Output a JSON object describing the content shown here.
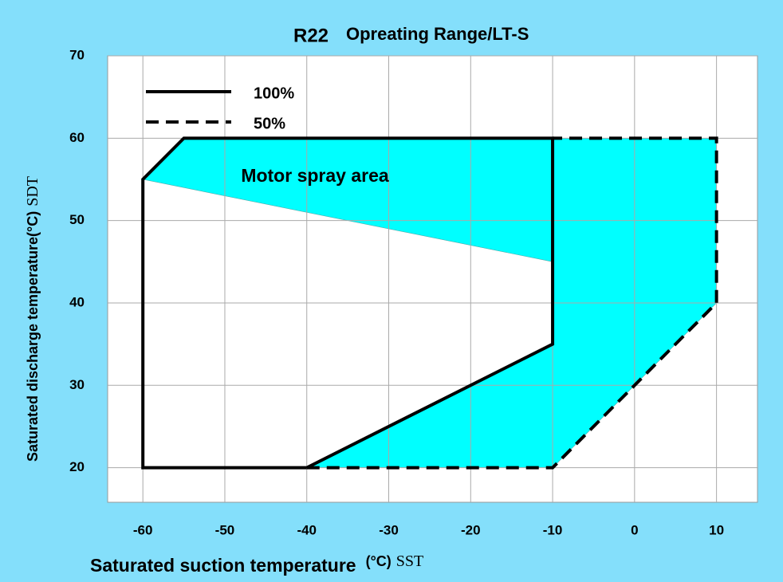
{
  "chart_data": {
    "type": "line",
    "title": "R22",
    "subtitle": "Opreating Range/LT-S",
    "xlabel": "Saturated suction temperature",
    "xlabel_unit": "(°C)",
    "xlabel_abbr": "SST",
    "ylabel": "Saturated discharge temperature(°C)",
    "ylabel_abbr": "SDT",
    "annotation": "Motor spray area",
    "xlim": [
      -64.3,
      15
    ],
    "ylim": [
      15.8,
      70
    ],
    "xticks": [
      -60,
      -50,
      -40,
      -30,
      -20,
      -10,
      0,
      10
    ],
    "yticks": [
      20,
      30,
      40,
      50,
      60,
      70
    ],
    "grid": true,
    "legend": "upper left",
    "area": {
      "color": "#00ffff",
      "x": [
        -60,
        -55,
        10,
        10,
        -10,
        -40,
        -10,
        -10
      ],
      "y": [
        55,
        60,
        60,
        40,
        20,
        20,
        35,
        45
      ]
    },
    "series": [
      {
        "name": "100%",
        "color": "#000000",
        "dash": "solid",
        "x": [
          -40,
          -60,
          -60,
          -55,
          -10,
          -10,
          -40
        ],
        "y": [
          20,
          20,
          55,
          60,
          60,
          35,
          20
        ]
      },
      {
        "name": "50%",
        "color": "#000000",
        "dash": "dashed",
        "x": [
          -40,
          -10,
          10,
          10,
          -10
        ],
        "y": [
          20,
          20,
          40,
          60,
          60
        ]
      }
    ]
  }
}
